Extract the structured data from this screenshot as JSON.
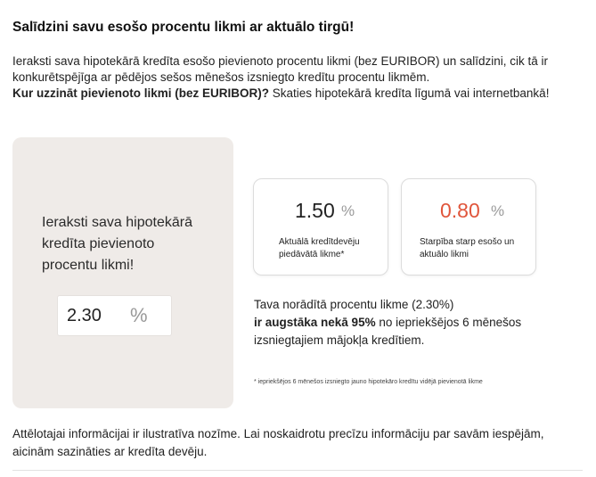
{
  "title": "Salīdzini savu esošo procentu likmi ar aktuālo tirgū!",
  "intro": {
    "text": "Ieraksti sava hipotekārā kredīta esošo pievienoto procentu likmi (bez EURIBOR) un salīdzini, cik tā ir konkurētspējīga ar pēdējos sešos mēnešos izsniegto kredītu procentu likmēm.",
    "question_bold": "Kur uzzināt pievienoto likmi (bez EURIBOR)?",
    "answer": " Skaties hipotekārā kredīta līgumā vai internetbankā!"
  },
  "input_card": {
    "label": "Ieraksti sava hipotekārā kredīta pievienoto procentu likmi!",
    "value": "2.30",
    "unit": "%"
  },
  "cards": [
    {
      "value": "1.50",
      "unit": "%",
      "caption": "Aktuālā kredītdevēju piedāvātā likme*"
    },
    {
      "value": "0.80",
      "unit": "%",
      "caption": "Starpība starp esošo un aktuālo likmi"
    }
  ],
  "result": {
    "line1": "Tava norādītā procentu likme (2.30%)",
    "bold": "ir augstāka nekā 95%",
    "rest": " no iepriekšējos 6 mēnešos izsniegtajiem mājokļa kredītiem."
  },
  "footnote": "* iepriekšējos 6 mēnešos izsniegto jauno hipotekāro kredītu vidējā pievienotā likme",
  "disclaimer": "Attēlotajai informācijai ir ilustratīva nozīme. Lai noskaidrotu precīzu informāciju par savām iespējām, aicinām sazināties ar kredīta devēju.",
  "colors": {
    "accent_red": "#e0553b",
    "card_bg": "#efebe8"
  }
}
